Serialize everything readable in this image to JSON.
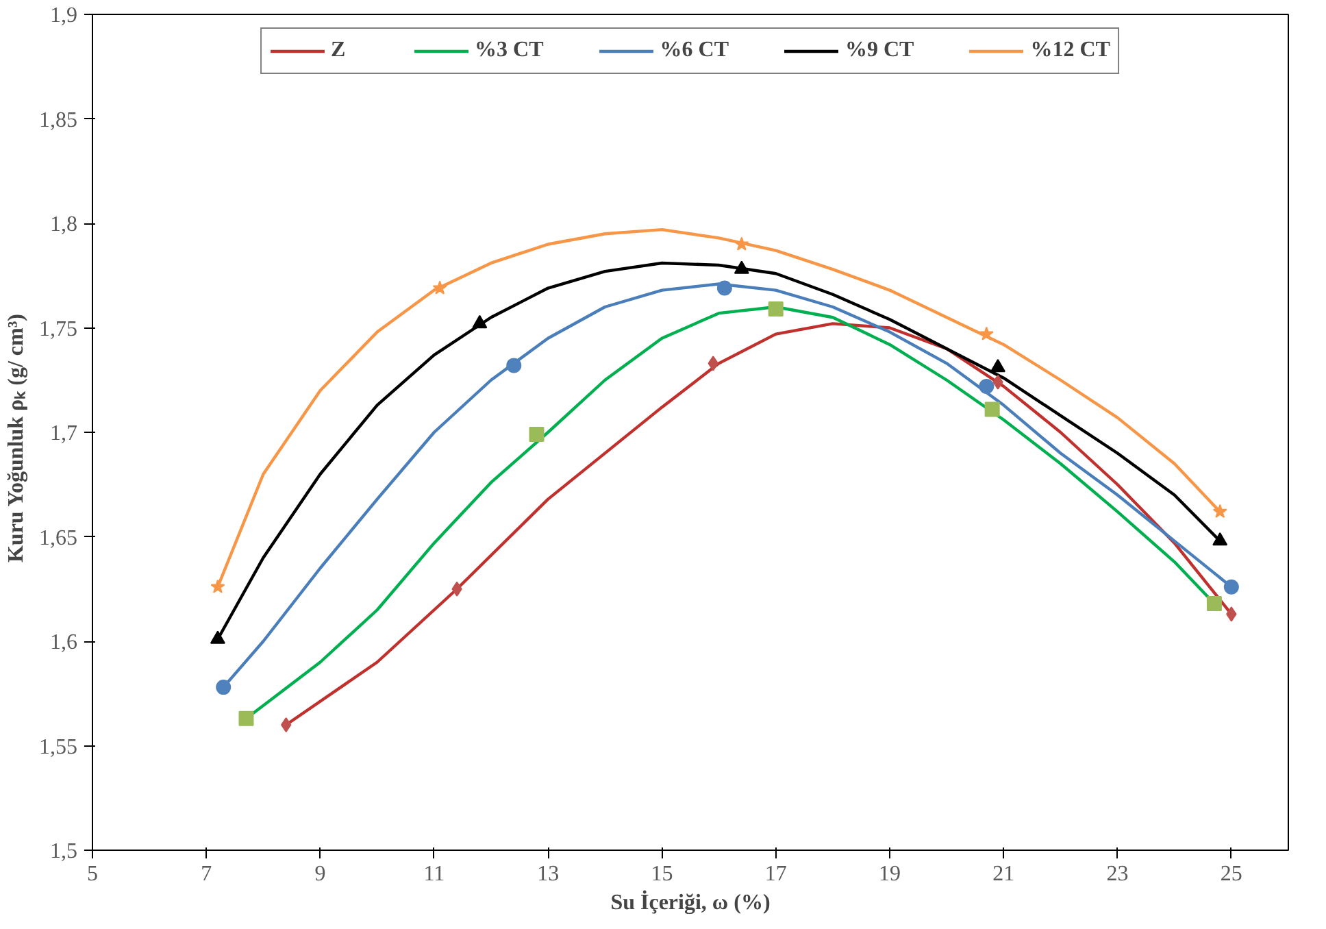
{
  "chart_data": {
    "type": "line",
    "xlabel": "Su İçeriği, ω (%)",
    "ylabel": "Kuru  Yoğunluk  ρₖ (g/ cm³)",
    "xlim": [
      5,
      26
    ],
    "xticks": [
      5,
      7,
      9,
      11,
      13,
      15,
      17,
      19,
      21,
      23,
      25
    ],
    "ylim": [
      1.5,
      1.9
    ],
    "yticks": [
      {
        "value": 1.5,
        "label": "1,5"
      },
      {
        "value": 1.55,
        "label": "1,55"
      },
      {
        "value": 1.6,
        "label": "1,6"
      },
      {
        "value": 1.65,
        "label": "1,65"
      },
      {
        "value": 1.7,
        "label": "1,7"
      },
      {
        "value": 1.75,
        "label": "1,75"
      },
      {
        "value": 1.8,
        "label": "1,8"
      },
      {
        "value": 1.85,
        "label": "1,85"
      },
      {
        "value": 1.9,
        "label": "1,9"
      }
    ],
    "grid": false,
    "legend": "top",
    "series": [
      {
        "name": "Z",
        "color": "#c0302d",
        "x": [
          8.4,
          10,
          11.4,
          13,
          15,
          16,
          17,
          18,
          19,
          20,
          21,
          22,
          23,
          24,
          25
        ],
        "values": [
          1.56,
          1.59,
          1.625,
          1.668,
          1.712,
          1.733,
          1.747,
          1.752,
          1.75,
          1.74,
          1.722,
          1.7,
          1.675,
          1.647,
          1.613
        ]
      },
      {
        "name": "%3 CT",
        "color": "#00b050",
        "x": [
          7.7,
          9,
          10,
          11,
          12,
          13,
          14,
          15,
          16,
          17,
          18,
          19,
          20,
          21,
          22,
          23,
          24,
          24.7
        ],
        "values": [
          1.563,
          1.59,
          1.615,
          1.647,
          1.676,
          1.7,
          1.725,
          1.745,
          1.757,
          1.76,
          1.755,
          1.742,
          1.725,
          1.706,
          1.685,
          1.662,
          1.638,
          1.618
        ]
      },
      {
        "name": "%6 CT",
        "color": "#4a7ebb",
        "x": [
          7.3,
          8,
          9,
          10,
          11,
          12,
          13,
          14,
          15,
          16,
          17,
          18,
          19,
          20,
          21,
          22,
          23,
          24,
          25
        ],
        "values": [
          1.578,
          1.6,
          1.635,
          1.668,
          1.7,
          1.725,
          1.745,
          1.76,
          1.768,
          1.771,
          1.768,
          1.76,
          1.748,
          1.733,
          1.713,
          1.69,
          1.67,
          1.648,
          1.626
        ]
      },
      {
        "name": "%9 CT",
        "color": "#000000",
        "x": [
          7.2,
          8,
          9,
          10,
          11,
          12,
          13,
          14,
          15,
          16,
          17,
          18,
          19,
          20,
          21,
          22,
          23,
          24,
          24.8
        ],
        "values": [
          1.601,
          1.64,
          1.68,
          1.713,
          1.737,
          1.755,
          1.769,
          1.777,
          1.781,
          1.78,
          1.776,
          1.766,
          1.754,
          1.74,
          1.726,
          1.708,
          1.69,
          1.67,
          1.648
        ]
      },
      {
        "name": "%12 CT",
        "color": "#f79646",
        "x": [
          7.2,
          8,
          9,
          10,
          11,
          12,
          13,
          14,
          15,
          16,
          17,
          18,
          19,
          20,
          21,
          22,
          23,
          24,
          24.8
        ],
        "values": [
          1.626,
          1.68,
          1.72,
          1.748,
          1.768,
          1.781,
          1.79,
          1.795,
          1.797,
          1.793,
          1.787,
          1.778,
          1.768,
          1.755,
          1.742,
          1.725,
          1.707,
          1.685,
          1.662
        ]
      },
      {
        "type": "scatter",
        "marker": "triangle",
        "color": "#000000",
        "x": [
          7.2,
          11.8,
          16.4,
          20.9,
          24.8
        ],
        "values": [
          1.601,
          1.752,
          1.778,
          1.731,
          1.648
        ]
      },
      {
        "type": "scatter",
        "marker": "star",
        "color": "#f79646",
        "x": [
          7.2,
          11.1,
          16.4,
          20.7,
          24.8
        ],
        "values": [
          1.626,
          1.769,
          1.79,
          1.747,
          1.662
        ]
      },
      {
        "type": "scatter",
        "marker": "circle",
        "color": "#4f81bd",
        "x": [
          7.3,
          12.4,
          16.1,
          20.7,
          25
        ],
        "values": [
          1.578,
          1.732,
          1.769,
          1.722,
          1.626
        ]
      },
      {
        "type": "scatter",
        "marker": "square",
        "color": "#9bbb59",
        "x": [
          7.7,
          12.8,
          17,
          20.8,
          24.7
        ],
        "values": [
          1.563,
          1.699,
          1.759,
          1.711,
          1.618
        ]
      },
      {
        "type": "scatter",
        "marker": "diamond",
        "color": "#c0504d",
        "x": [
          8.4,
          11.4,
          15.9,
          20.9,
          25
        ],
        "values": [
          1.56,
          1.625,
          1.733,
          1.724,
          1.613
        ]
      }
    ]
  }
}
